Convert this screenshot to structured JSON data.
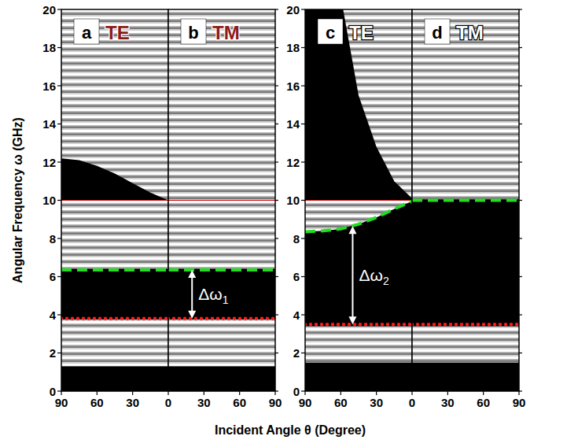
{
  "figure": {
    "xlabel": "Incident Angle θ (Degree)",
    "ylabel": "Angular Frequency ω (GHz)"
  },
  "chart_data": [
    {
      "type": "line",
      "label": "a",
      "title": "TE",
      "color": "#8b1a1a",
      "xlim": [
        90,
        0
      ],
      "xticks": [
        90,
        60,
        30,
        0
      ],
      "ylim": [
        0,
        20
      ],
      "yticks": [
        0,
        2,
        4,
        6,
        8,
        10,
        12,
        14,
        16,
        18,
        20
      ],
      "series": [
        {
          "type": "area",
          "x": [
            90,
            0
          ],
          "low": [
            1.3,
            1.3
          ],
          "values": [
            3.75,
            3.75
          ]
        },
        {
          "type": "area",
          "x": [
            90,
            0
          ],
          "low": [
            6.4,
            6.4
          ],
          "values": [
            10,
            10
          ]
        },
        {
          "type": "area",
          "x": [
            90,
            75,
            60,
            45,
            30,
            15,
            0
          ],
          "low": [
            12.2,
            12.1,
            11.8,
            11.4,
            10.9,
            10.4,
            10
          ],
          "values": [
            20,
            20,
            20,
            20,
            20,
            20,
            20
          ]
        },
        {
          "type": "line",
          "x": [
            90,
            0
          ],
          "values": [
            10,
            10
          ],
          "color": "#cc0000",
          "line_style": "solid"
        },
        {
          "type": "line",
          "x": [
            90,
            0
          ],
          "values": [
            6.35,
            6.35
          ],
          "color": "#22dd22",
          "line_style": "dashed"
        },
        {
          "type": "line",
          "x": [
            90,
            0
          ],
          "values": [
            3.8,
            3.8
          ],
          "color": "#ff1a1a",
          "line_style": "dotted"
        }
      ],
      "annotations": []
    },
    {
      "type": "line",
      "label": "b",
      "title": "TM",
      "color": "#8b1a1a",
      "tick_labels": "x",
      "xlim": [
        0,
        90
      ],
      "xticks": [
        30,
        60,
        90
      ],
      "ylim": [
        0,
        20
      ],
      "yticks": [
        0,
        2,
        4,
        6,
        8,
        10,
        12,
        14,
        16,
        18,
        20
      ],
      "series": [
        {
          "type": "area",
          "x": [
            0,
            90
          ],
          "low": [
            1.3,
            1.3
          ],
          "values": [
            3.75,
            3.75
          ]
        },
        {
          "type": "area",
          "x": [
            0,
            90
          ],
          "low": [
            6.4,
            6.4
          ],
          "values": [
            10,
            10
          ]
        },
        {
          "type": "area",
          "x": [
            0,
            90
          ],
          "low": [
            10,
            10
          ],
          "values": [
            20,
            20
          ]
        },
        {
          "type": "line",
          "x": [
            0,
            90
          ],
          "values": [
            10,
            10
          ],
          "color": "#cc0000",
          "line_style": "solid"
        },
        {
          "type": "line",
          "x": [
            0,
            90
          ],
          "values": [
            6.35,
            6.35
          ],
          "color": "#22dd22",
          "line_style": "dashed"
        },
        {
          "type": "line",
          "x": [
            0,
            90
          ],
          "values": [
            3.8,
            3.8
          ],
          "color": "#ff1a1a",
          "line_style": "dotted"
        }
      ],
      "annotations": [
        {
          "text": "Δω",
          "subscript": "1",
          "x": 20,
          "from": 3.8,
          "to": 6.35
        }
      ]
    },
    {
      "type": "line",
      "label": "c",
      "title": "TE",
      "color": "#ffffff",
      "xlim": [
        90,
        0
      ],
      "xticks": [
        90,
        60,
        30,
        0
      ],
      "ylim": [
        0,
        20
      ],
      "yticks": [
        0,
        2,
        4,
        6,
        8,
        10,
        12,
        14,
        16,
        18,
        20
      ],
      "series": [
        {
          "type": "area",
          "x": [
            90,
            0
          ],
          "low": [
            1.5,
            1.5
          ],
          "values": [
            3.4,
            3.4
          ]
        },
        {
          "type": "area",
          "x": [
            90,
            75,
            60,
            45,
            30,
            15,
            0
          ],
          "low": [
            8.35,
            8.4,
            8.5,
            8.75,
            9.1,
            9.55,
            9.95
          ],
          "values": [
            10,
            10,
            10,
            10,
            10,
            10,
            10
          ]
        },
        {
          "type": "area",
          "x": [
            58,
            45,
            30,
            15,
            0
          ],
          "low": [
            20,
            15.5,
            12.8,
            11,
            10.1
          ],
          "values": [
            20,
            20,
            20,
            20,
            20
          ]
        },
        {
          "type": "line",
          "x": [
            90,
            0
          ],
          "values": [
            10,
            10
          ],
          "color": "#cc0000",
          "line_style": "solid"
        },
        {
          "type": "line",
          "x": [
            90,
            75,
            60,
            45,
            30,
            15,
            0
          ],
          "values": [
            8.35,
            8.4,
            8.5,
            8.75,
            9.1,
            9.55,
            9.95
          ],
          "color": "#22dd22",
          "line_style": "dashed"
        },
        {
          "type": "line",
          "x": [
            90,
            0
          ],
          "values": [
            3.5,
            3.5
          ],
          "color": "#ff1a1a",
          "line_style": "dotted"
        }
      ],
      "annotations": [
        {
          "text": "Δω",
          "subscript": "2",
          "x": 50,
          "from": 3.5,
          "to": 8.65
        }
      ]
    },
    {
      "type": "line",
      "label": "d",
      "title": "TM",
      "color": "#ffffff",
      "tick_labels": "x",
      "xlim": [
        0,
        90
      ],
      "xticks": [
        30,
        60,
        90
      ],
      "ylim": [
        0,
        20
      ],
      "yticks": [
        0,
        2,
        4,
        6,
        8,
        10,
        12,
        14,
        16,
        18,
        20
      ],
      "series": [
        {
          "type": "area",
          "x": [
            0,
            90
          ],
          "low": [
            1.5,
            1.5
          ],
          "values": [
            3.4,
            3.4
          ]
        },
        {
          "type": "area",
          "x": [
            0,
            90
          ],
          "low": [
            10.05,
            10.05
          ],
          "values": [
            20,
            20
          ]
        },
        {
          "type": "line",
          "x": [
            0,
            90
          ],
          "values": [
            10,
            10
          ],
          "color": "#22dd22",
          "line_style": "dashed"
        },
        {
          "type": "line",
          "x": [
            0,
            90
          ],
          "values": [
            3.5,
            3.5
          ],
          "color": "#ff1a1a",
          "line_style": "dotted"
        }
      ],
      "annotations": []
    }
  ]
}
